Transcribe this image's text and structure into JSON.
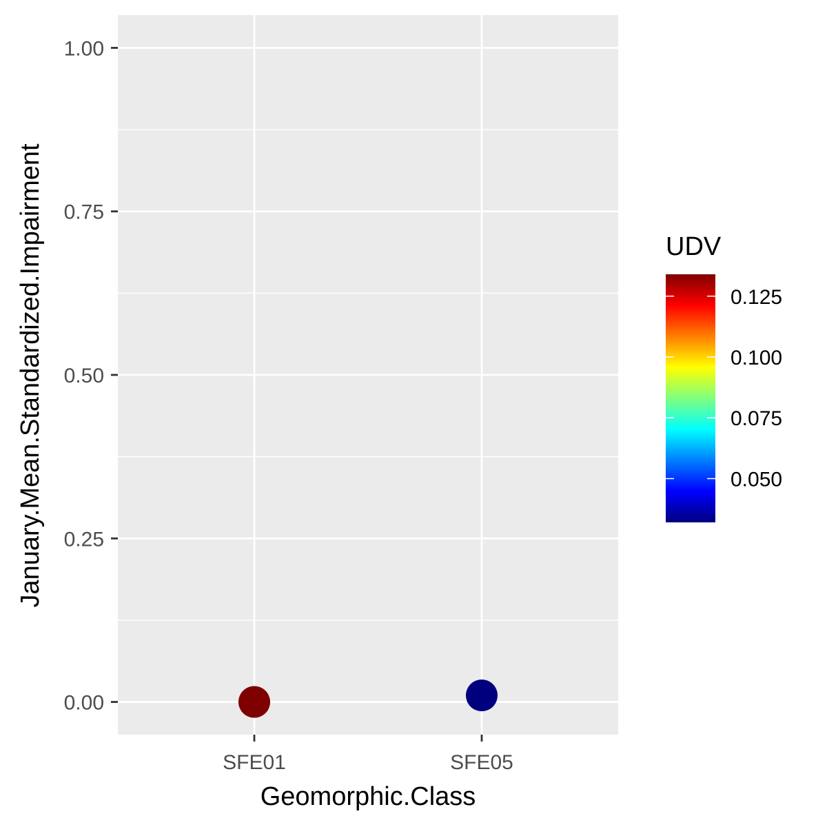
{
  "chart_data": {
    "type": "scatter",
    "title": "",
    "xlabel": "Geomorphic.Class",
    "ylabel": "January.Mean.Standardized.Impairment",
    "categories": [
      "SFE01",
      "SFE05"
    ],
    "points": [
      {
        "x": "SFE01",
        "y": 0.0,
        "udv": 0.134,
        "color": "#7f0000"
      },
      {
        "x": "SFE05",
        "y": 0.01,
        "udv": 0.032,
        "color": "#00007f"
      }
    ],
    "ylim": [
      -0.05,
      1.05
    ],
    "yticks": [
      0.0,
      0.25,
      0.5,
      0.75,
      1.0
    ],
    "ytick_labels": [
      "0.00",
      "0.25",
      "0.50",
      "0.75",
      "1.00"
    ],
    "grid": true,
    "panel_background": "#ebebeb",
    "legend": {
      "title": "UDV",
      "placement": "right",
      "type": "colorbar",
      "range": [
        0.032,
        0.134
      ],
      "breaks": [
        0.05,
        0.075,
        0.1,
        0.125
      ],
      "labels": [
        "0.050",
        "0.075",
        "0.100",
        "0.125"
      ],
      "colors": [
        "#00007f",
        "#0000ff",
        "#007fff",
        "#00ffff",
        "#7fff7f",
        "#ffff00",
        "#ff7f00",
        "#ff0000",
        "#7f0000"
      ]
    }
  }
}
